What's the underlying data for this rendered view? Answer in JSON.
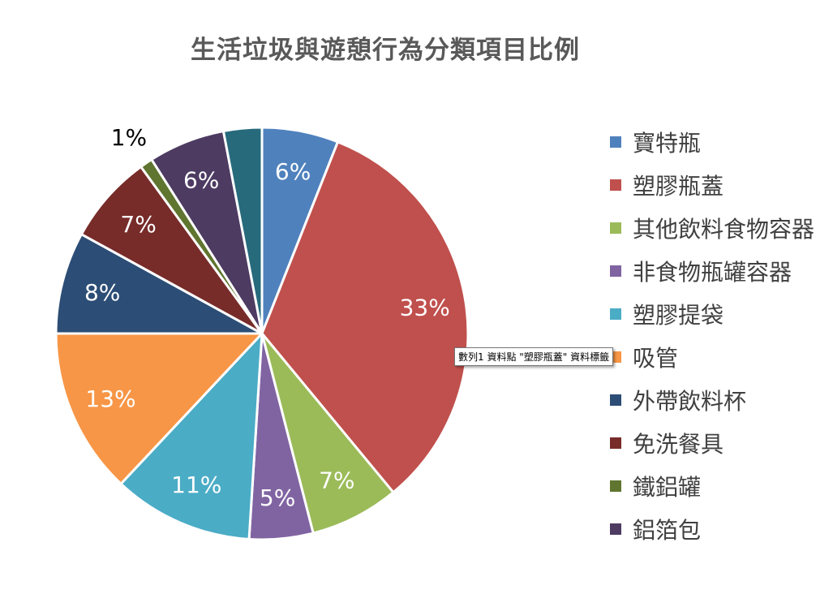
{
  "chart_data": {
    "type": "pie",
    "title": "生活垃圾與遊憩行為分類項目比例",
    "categories": [
      "寶特瓶",
      "塑膠瓶蓋",
      "其他飲料食物容器",
      "非食物瓶罐容器",
      "塑膠提袋",
      "吸管",
      "外帶飲料杯",
      "免洗餐具",
      "鐵鋁罐",
      "鋁箔包",
      ""
    ],
    "values": [
      6,
      33,
      7,
      5,
      11,
      13,
      8,
      7,
      1,
      6,
      3
    ],
    "data_labels": [
      "6%",
      "33%",
      "7%",
      "5%",
      "11%",
      "13%",
      "8%",
      "7%",
      "1%",
      "6%",
      ""
    ],
    "colors": [
      "#4f81bd",
      "#c0504d",
      "#9bbb59",
      "#8064a2",
      "#4bacc6",
      "#f79646",
      "#2c4d75",
      "#772c2a",
      "#5f7530",
      "#4d3b62",
      "#276a7c"
    ],
    "legend_position": "right"
  },
  "legend": {
    "items": [
      {
        "label": "寶特瓶",
        "color": "#4f81bd"
      },
      {
        "label": "塑膠瓶蓋",
        "color": "#c0504d"
      },
      {
        "label": "其他飲料食物容器",
        "color": "#9bbb59"
      },
      {
        "label": "非食物瓶罐容器",
        "color": "#8064a2"
      },
      {
        "label": "塑膠提袋",
        "color": "#4bacc6"
      },
      {
        "label": "吸管",
        "color": "#f79646"
      },
      {
        "label": "外帶飲料杯",
        "color": "#2c4d75"
      },
      {
        "label": "免洗餐具",
        "color": "#772c2a"
      },
      {
        "label": "鐵鋁罐",
        "color": "#5f7530"
      },
      {
        "label": "鋁箔包",
        "color": "#4d3b62"
      }
    ]
  },
  "tooltip": {
    "text": "數列1 資料點 \"塑膠瓶蓋\" 資料標籤"
  }
}
